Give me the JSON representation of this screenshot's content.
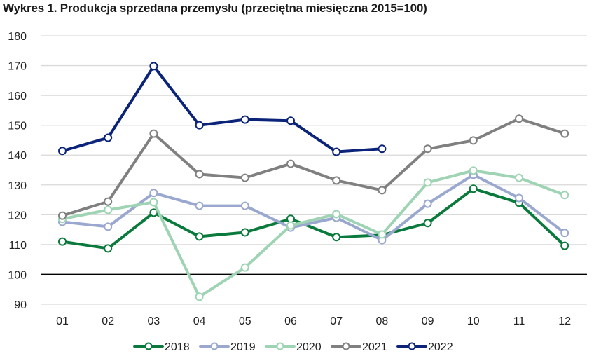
{
  "title": "Wykres 1. Produkcja sprzedana przemysłu (przeciętna miesięczna 2015=100)",
  "chart_data": {
    "type": "line",
    "title": "Wykres 1. Produkcja sprzedana przemysłu (przeciętna miesięczna 2015=100)",
    "xlabel": "",
    "ylabel": "",
    "categories": [
      "01",
      "02",
      "03",
      "04",
      "05",
      "06",
      "07",
      "08",
      "09",
      "10",
      "11",
      "12"
    ],
    "ylim": [
      90,
      180
    ],
    "yticks": [
      90,
      100,
      110,
      120,
      130,
      140,
      150,
      160,
      170,
      180
    ],
    "reference_line": 100,
    "grid": true,
    "legend_position": "bottom",
    "series": [
      {
        "name": "2018",
        "color": "#0a7a3c",
        "values": [
          111.0,
          108.7,
          120.7,
          112.7,
          114.1,
          118.6,
          112.5,
          113.2,
          117.2,
          128.7,
          124.0,
          109.6
        ]
      },
      {
        "name": "2019",
        "color": "#9aa8cf",
        "values": [
          117.6,
          116.0,
          127.3,
          123.0,
          123.0,
          115.7,
          119.0,
          111.5,
          123.7,
          133.4,
          125.6,
          113.9
        ]
      },
      {
        "name": "2020",
        "color": "#9ed3b4",
        "values": [
          118.6,
          121.6,
          124.2,
          92.5,
          102.3,
          116.4,
          120.2,
          113.4,
          130.8,
          134.8,
          132.4,
          126.6
        ]
      },
      {
        "name": "2021",
        "color": "#808080",
        "values": [
          119.7,
          124.4,
          147.2,
          133.6,
          132.4,
          137.1,
          131.5,
          128.2,
          142.1,
          144.9,
          152.2,
          147.2
        ]
      },
      {
        "name": "2022",
        "color": "#0b2479",
        "values": [
          141.4,
          145.8,
          169.8,
          150.0,
          151.9,
          151.5,
          141.1,
          142.1,
          null,
          null,
          null,
          null
        ]
      }
    ]
  }
}
